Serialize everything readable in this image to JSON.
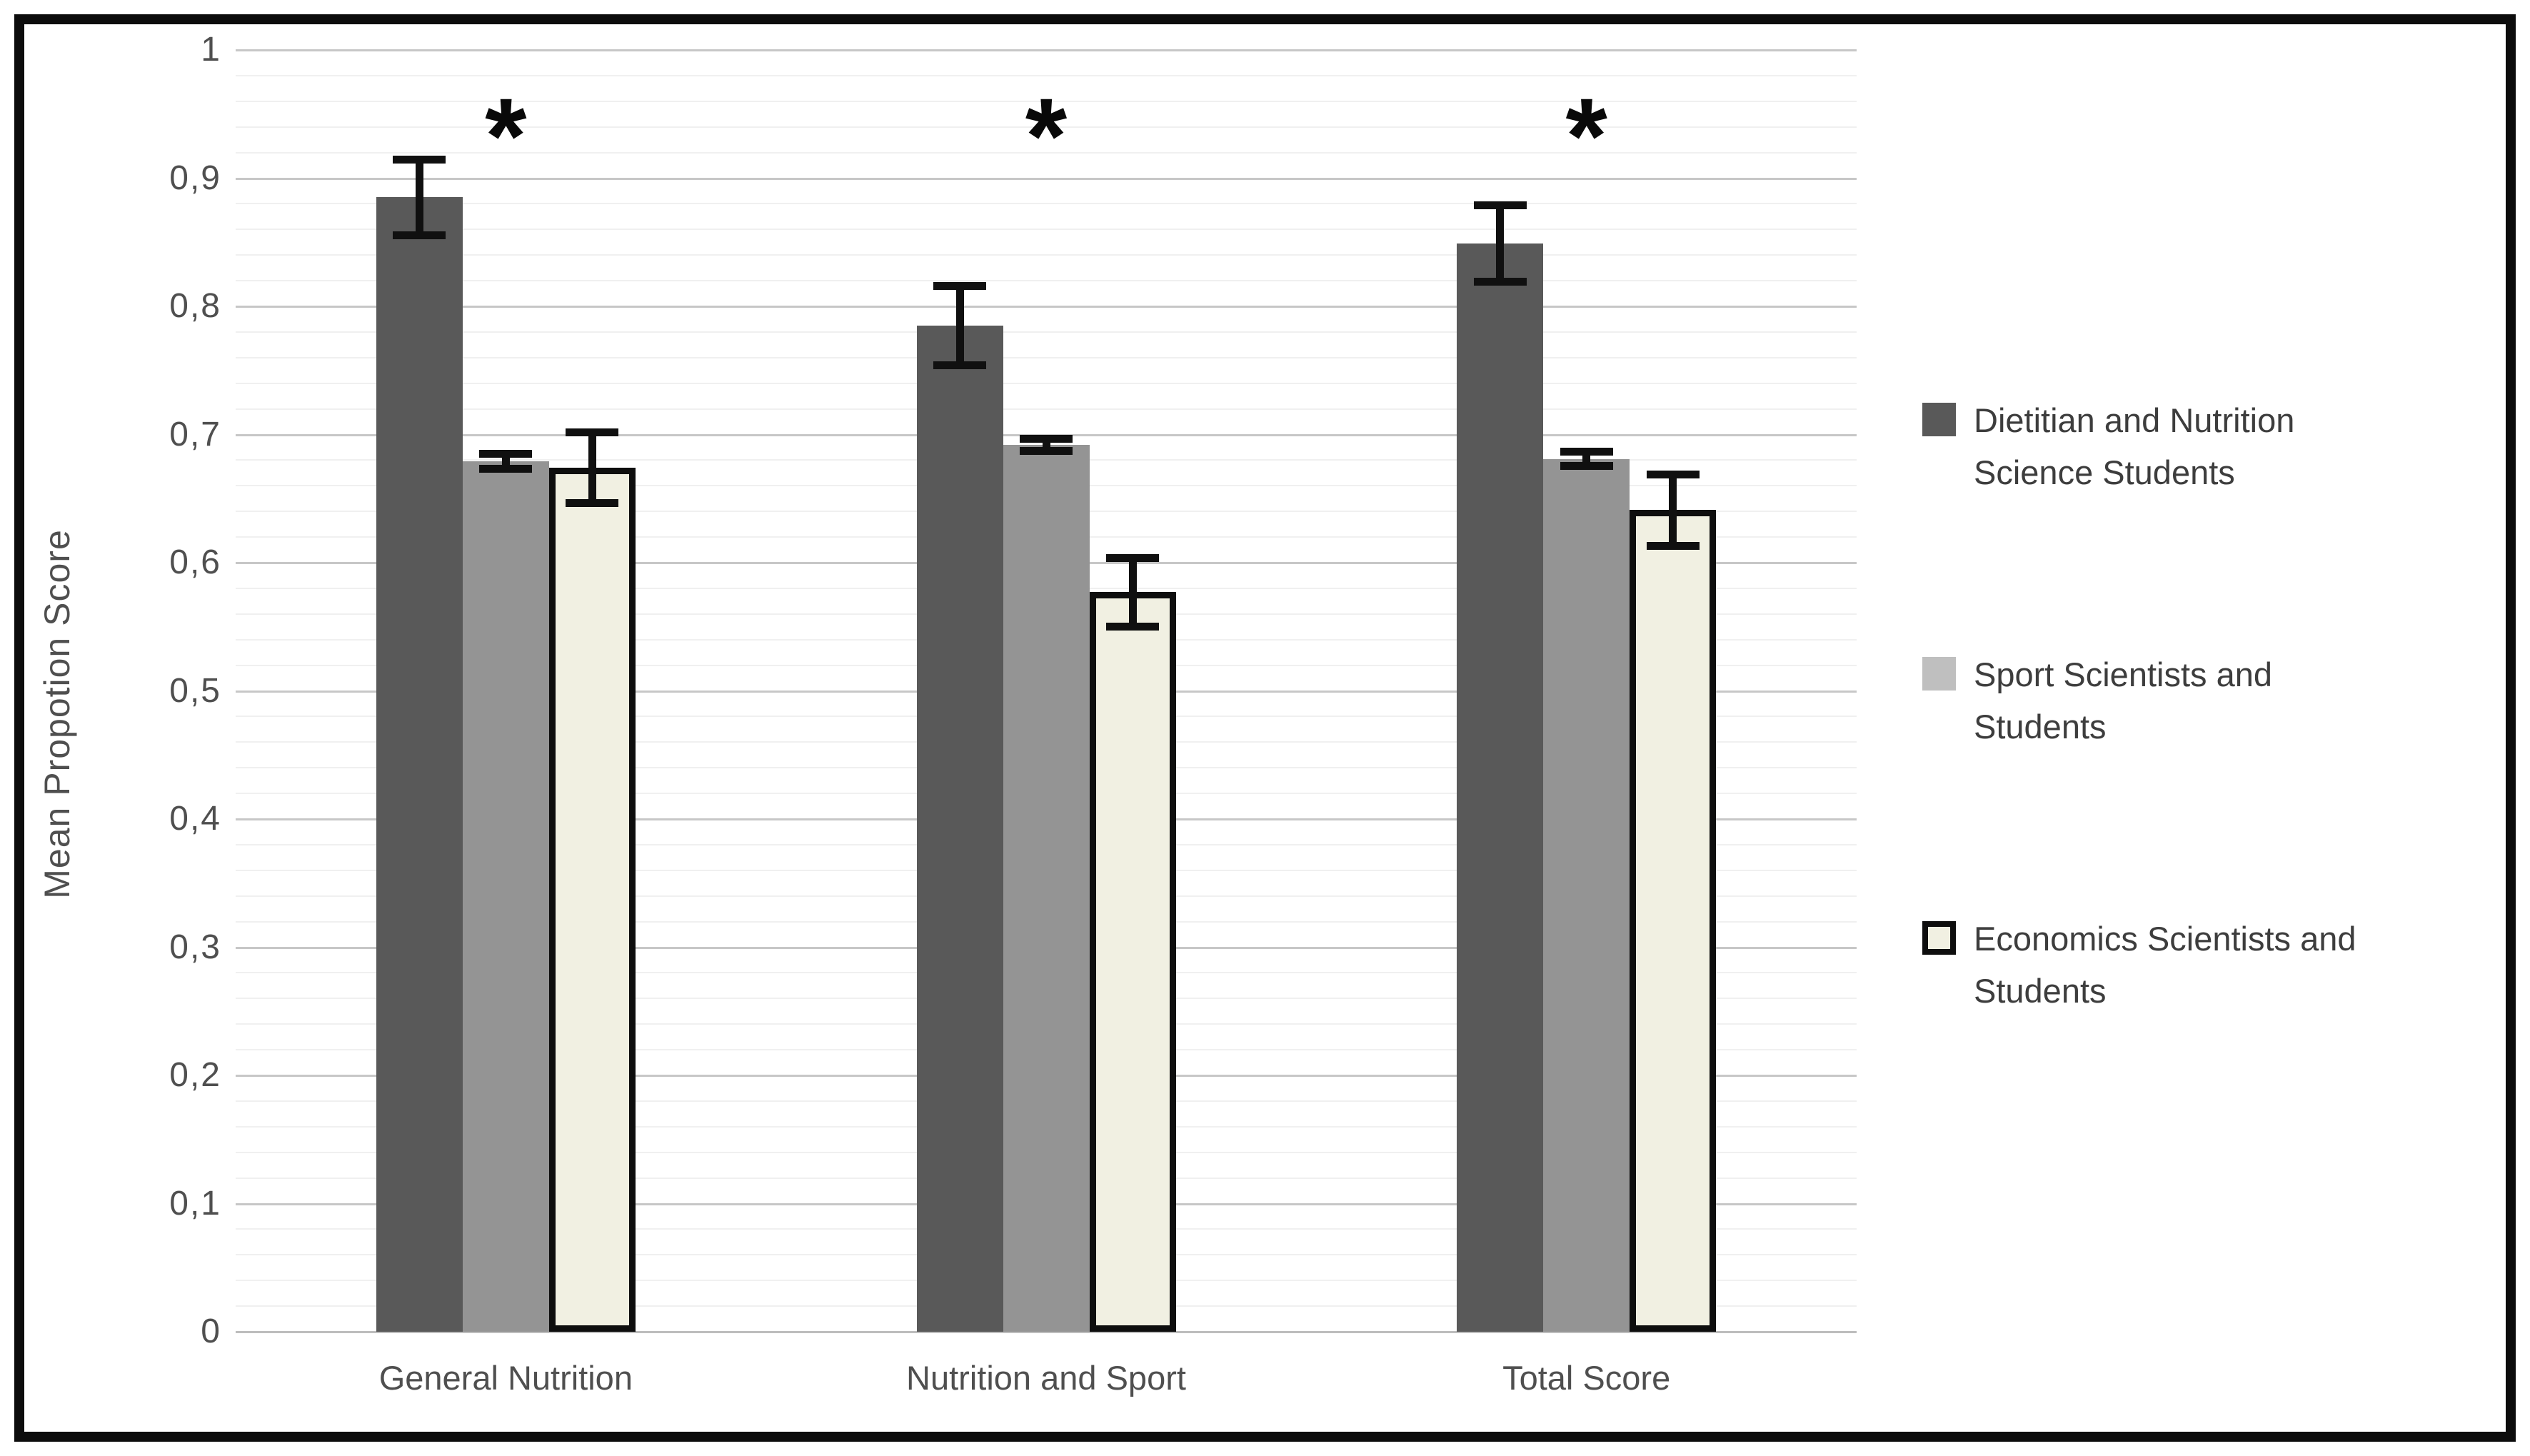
{
  "chart_data": {
    "type": "bar",
    "title": "",
    "xlabel": "",
    "ylabel": "Mean Propotion Score",
    "ylim": [
      0,
      1
    ],
    "y_tick_step": 0.1,
    "y_minor_step": 0.02,
    "decimal_separator": ",",
    "y_tick_labels": [
      "1",
      "0,9",
      "0,8",
      "0,7",
      "0,6",
      "0,5",
      "0,4",
      "0,3",
      "0,2",
      "0,1",
      "0"
    ],
    "grid": "on",
    "legend_position": "right",
    "categories": [
      "General Nutrition",
      "Nutrition and Sport",
      "Total Score"
    ],
    "significance_marker": "*",
    "significance_per_category": [
      true,
      true,
      true
    ],
    "series": [
      {
        "name": "Dietitian and Nutrition Science Students",
        "name_lines": [
          "Dietitian and Nutrition",
          "Science Students"
        ],
        "values": [
          0.885,
          0.785,
          0.849
        ],
        "errors": [
          0.03,
          0.031,
          0.03
        ],
        "fill": "#595959",
        "swatch": "#595959",
        "border": "none"
      },
      {
        "name": "Sport Scientists and Students",
        "name_lines": [
          "Sport Scientists and",
          "Students"
        ],
        "values": [
          0.679,
          0.692,
          0.681
        ],
        "errors": [
          0.006,
          0.005,
          0.006
        ],
        "fill": "#949494",
        "swatch": "#bfbfbf",
        "border": "none"
      },
      {
        "name": "Economics Scientists and Students",
        "name_lines": [
          "Economics Scientists and",
          "Students"
        ],
        "values": [
          0.674,
          0.577,
          0.641
        ],
        "errors": [
          0.028,
          0.027,
          0.028
        ],
        "fill": "#f1f0e2",
        "swatch": "#f1f0e2",
        "border": "#0e0e0e"
      }
    ]
  },
  "colors": {
    "frame": "#0c0c0c",
    "major_grid": "#c7c7c7",
    "minor_grid": "#f0f0f0",
    "baseline": "#bdbdbd",
    "error_bar": "#101010",
    "tick_text": "#4f4f4f",
    "legend_text": "#3d3d3d",
    "background": "#ffffff"
  }
}
